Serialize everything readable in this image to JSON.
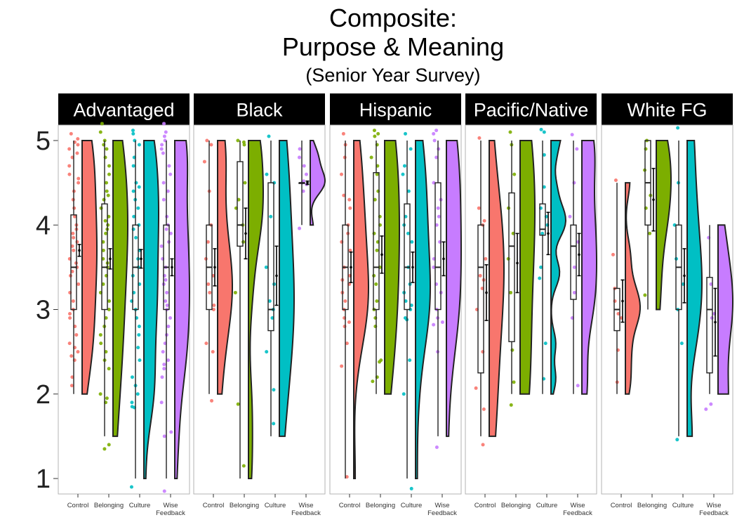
{
  "chart_data": {
    "type": "raincloud",
    "title_lines": [
      "Composite:",
      "Purpose & Meaning"
    ],
    "subtitle": "(Senior Year Survey)",
    "xlabel": "",
    "ylabel": "",
    "ylim": [
      0.8,
      5.3
    ],
    "y_ticks": [
      "1",
      "2",
      "3",
      "4",
      "5"
    ],
    "categories": [
      "Control",
      "Belonging",
      "Culture",
      "Wise Feedback"
    ],
    "category_tick_labels": [
      [
        "Control"
      ],
      [
        "Belonging"
      ],
      [
        "Culture"
      ],
      [
        "Wise",
        "Feedback"
      ]
    ],
    "colors": {
      "Control": "#F8766D",
      "Belonging": "#7CAE00",
      "Culture": "#00BFC4",
      "Wise Feedback": "#C77CFF"
    },
    "panels": [
      {
        "name": "Advantaged",
        "groups": [
          {
            "category": "Control",
            "min": 2,
            "q1": 3,
            "median": 3.5,
            "q3": 4.12,
            "max": 5,
            "mean": 3.7,
            "se": 0.07,
            "points": [
              5.08,
              5.02,
              4.98,
              4.95,
              4.9,
              4.85,
              4.8,
              4.7,
              4.6,
              4.55,
              4.5,
              4.4,
              4.3,
              4.2,
              4.1,
              4.0,
              3.95,
              3.9,
              3.85,
              3.8,
              3.75,
              3.7,
              3.6,
              3.55,
              3.5,
              3.45,
              3.4,
              3.3,
              3.2,
              3.1,
              3.0,
              2.95,
              2.9,
              2.8,
              2.7,
              2.6,
              2.55,
              2.5,
              2.45,
              2.4,
              2.2,
              2.1
            ]
          },
          {
            "category": "Belonging",
            "min": 1.5,
            "q1": 3,
            "median": 3.5,
            "q3": 4.25,
            "max": 5,
            "mean": 3.6,
            "se": 0.12,
            "points": [
              5.2,
              5.1,
              5.0,
              4.95,
              4.9,
              4.8,
              4.7,
              4.6,
              4.5,
              4.4,
              4.35,
              4.3,
              4.2,
              4.1,
              4.05,
              4.0,
              3.95,
              3.9,
              3.8,
              3.7,
              3.6,
              3.55,
              3.5,
              3.4,
              3.3,
              3.2,
              3.1,
              3.0,
              2.9,
              2.8,
              2.7,
              2.6,
              2.5,
              2.4,
              2.3,
              2.0,
              1.95,
              1.9,
              1.4,
              1.35
            ]
          },
          {
            "category": "Culture",
            "min": 1,
            "q1": 3,
            "median": 3.5,
            "q3": 4,
            "max": 5,
            "mean": 3.6,
            "se": 0.11,
            "points": [
              5.12,
              5.08,
              5.0,
              4.95,
              4.8,
              4.7,
              4.5,
              4.45,
              4.4,
              4.3,
              4.2,
              4.1,
              4.0,
              3.95,
              3.85,
              3.7,
              3.6,
              3.5,
              3.4,
              3.3,
              3.2,
              3.1,
              3.0,
              2.9,
              2.8,
              2.7,
              2.55,
              2.4,
              2.2,
              2.1,
              2.0,
              1.9,
              1.85,
              1.84,
              0.9
            ]
          },
          {
            "category": "Wise Feedback",
            "min": 1,
            "q1": 3,
            "median": 3.5,
            "q3": 4,
            "max": 5,
            "mean": 3.5,
            "se": 0.1,
            "points": [
              5.2,
              5.1,
              5.05,
              5.0,
              4.95,
              4.9,
              4.85,
              4.7,
              4.6,
              4.5,
              4.4,
              4.3,
              4.1,
              4.0,
              3.95,
              3.9,
              3.8,
              3.75,
              3.6,
              3.5,
              3.4,
              3.35,
              3.3,
              3.2,
              3.1,
              3.05,
              3.0,
              2.9,
              2.8,
              2.7,
              2.6,
              2.5,
              2.4,
              2.35,
              2.3,
              2.2,
              1.9,
              1.55,
              1.5,
              0.85
            ]
          }
        ]
      },
      {
        "name": "Black",
        "groups": [
          {
            "category": "Control",
            "min": 2,
            "q1": 3,
            "median": 3.5,
            "q3": 4,
            "max": 5,
            "mean": 3.5,
            "se": 0.22,
            "points": [
              5.0,
              4.95,
              4.75,
              4.4,
              4.0,
              3.8,
              3.6,
              3.4,
              3.3,
              3.2,
              3.05,
              3.0,
              2.6,
              2.5,
              1.92
            ]
          },
          {
            "category": "Belonging",
            "min": 1,
            "q1": 3.75,
            "median": 4,
            "q3": 4.75,
            "max": 5,
            "mean": 3.9,
            "se": 0.3,
            "points": [
              5.0,
              4.98,
              4.95,
              4.5,
              4.3,
              4.2,
              4.0,
              3.8,
              3.2,
              1.88,
              1.15
            ]
          },
          {
            "category": "Culture",
            "min": 1.5,
            "q1": 2.75,
            "median": 3,
            "q3": 4.5,
            "max": 5,
            "mean": 3.4,
            "se": 0.35,
            "points": [
              5.05,
              4.6,
              4.5,
              4.1,
              3.5,
              3.3,
              3.1,
              3.0,
              2.9,
              2.5,
              2.05,
              1.65
            ]
          },
          {
            "category": "Wise Feedback",
            "min": 4,
            "q1": 4.5,
            "median": 4.5,
            "q3": 4.5,
            "max": 5,
            "mean": 4.5,
            "se": 0.02,
            "points": [
              4.9,
              4.8,
              4.7,
              4.6,
              4.52,
              4.5,
              4.48,
              4.4,
              3.96
            ]
          }
        ]
      },
      {
        "name": "Hispanic",
        "groups": [
          {
            "category": "Control",
            "min": 1,
            "q1": 3,
            "median": 3.5,
            "q3": 4,
            "max": 5,
            "mean": 3.5,
            "se": 0.18,
            "points": [
              5.08,
              4.95,
              4.8,
              4.6,
              4.35,
              4.3,
              4.2,
              4.0,
              3.9,
              3.8,
              3.7,
              3.5,
              3.4,
              3.35,
              3.3,
              3.2,
              3.1,
              3.0,
              2.9,
              2.85,
              2.8,
              2.6,
              2.33,
              1.02
            ]
          },
          {
            "category": "Belonging",
            "min": 2,
            "q1": 3,
            "median": 3.5,
            "q3": 4.62,
            "max": 5,
            "mean": 3.65,
            "se": 0.22,
            "points": [
              5.12,
              5.08,
              5.05,
              4.95,
              4.8,
              4.7,
              4.6,
              4.4,
              4.3,
              4.1,
              4.0,
              3.9,
              3.8,
              3.7,
              3.5,
              3.4,
              3.3,
              3.1,
              3.0,
              2.9,
              2.8,
              2.4,
              2.38,
              2.2,
              2.15
            ]
          },
          {
            "category": "Culture",
            "min": 1,
            "q1": 3,
            "median": 3.5,
            "q3": 4.25,
            "max": 5,
            "mean": 3.5,
            "se": 0.18,
            "points": [
              5.08,
              4.9,
              4.7,
              4.6,
              4.4,
              4.1,
              4.0,
              3.9,
              3.8,
              3.5,
              3.3,
              3.2,
              3.1,
              3.05,
              3.0,
              2.9,
              2.88,
              2.4,
              2.0,
              0.88
            ]
          },
          {
            "category": "Wise Feedback",
            "min": 1.5,
            "q1": 3,
            "median": 3.5,
            "q3": 4.5,
            "max": 5,
            "mean": 3.6,
            "se": 0.2,
            "points": [
              5.12,
              5.08,
              5.0,
              4.9,
              4.8,
              4.5,
              4.3,
              4.2,
              4.1,
              4.0,
              3.8,
              3.6,
              3.5,
              3.3,
              3.2,
              3.0,
              2.9,
              2.85,
              2.82,
              2.5,
              1.37
            ]
          }
        ]
      },
      {
        "name": "Pacific/Native",
        "groups": [
          {
            "category": "Control",
            "min": 1.5,
            "q1": 2.25,
            "median": 3.5,
            "q3": 4,
            "max": 5,
            "mean": 3.2,
            "se": 0.33,
            "points": [
              5.03,
              4.2,
              4.05,
              4.0,
              3.6,
              3.4,
              3.35,
              3.25,
              3.0,
              2.5,
              2.07,
              1.82,
              1.4
            ]
          },
          {
            "category": "Belonging",
            "min": 2,
            "q1": 2.62,
            "median": 3.75,
            "q3": 4.38,
            "max": 5,
            "mean": 3.55,
            "se": 0.35,
            "points": [
              5.1,
              4.95,
              4.6,
              4.2,
              3.9,
              3.6,
              3.2,
              2.52,
              2.14,
              1.87
            ]
          },
          {
            "category": "Culture",
            "min": 2,
            "q1": 3.88,
            "median": 3.95,
            "q3": 4.25,
            "max": 5,
            "mean": 3.9,
            "se": 0.25,
            "points": [
              5.13,
              5.1,
              4.83,
              4.45,
              4.2,
              4.1,
              4.0,
              3.9,
              3.5,
              3.37,
              2.6,
              2.18
            ]
          },
          {
            "category": "Wise Feedback",
            "min": 2,
            "q1": 3.12,
            "median": 3.75,
            "q3": 4,
            "max": 5,
            "mean": 3.65,
            "se": 0.25,
            "points": [
              5.07,
              4.9,
              4.5,
              4.1,
              3.8,
              3.5,
              3.2,
              2.9,
              2.1
            ]
          }
        ]
      },
      {
        "name": "White FG",
        "groups": [
          {
            "category": "Control",
            "min": 2,
            "q1": 2.75,
            "median": 3,
            "q3": 3.25,
            "max": 4.5,
            "mean": 3.1,
            "se": 0.25,
            "points": [
              4.53,
              3.65,
              3.25,
              3.1,
              2.95,
              2.9,
              2.52,
              2.14
            ]
          },
          {
            "category": "Belonging",
            "min": 3,
            "q1": 4,
            "median": 4.5,
            "q3": 5,
            "max": 5,
            "mean": 4.3,
            "se": 0.37,
            "points": [
              5.0,
              4.9,
              4.65,
              4.35,
              4.2,
              3.9,
              3.17
            ]
          },
          {
            "category": "Culture",
            "min": 1.5,
            "q1": 3,
            "median": 3.5,
            "q3": 4,
            "max": 5,
            "mean": 3.4,
            "se": 0.32,
            "points": [
              5.15,
              4.5,
              4.0,
              3.6,
              3.3,
              3.0,
              2.6,
              1.46
            ]
          },
          {
            "category": "Wise Feedback",
            "min": 2,
            "q1": 2.25,
            "median": 3,
            "q3": 3.38,
            "max": 4,
            "mean": 2.85,
            "se": 0.4,
            "points": [
              3.85,
              3.3,
              2.95,
              2.9,
              1.88,
              1.82
            ]
          }
        ]
      }
    ]
  }
}
